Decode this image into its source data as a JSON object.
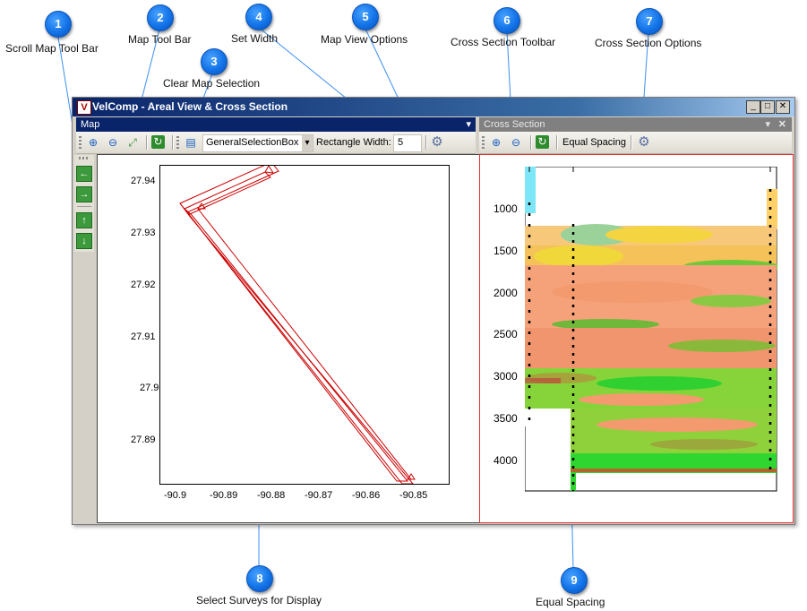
{
  "callouts": [
    {
      "num": "1",
      "label": "Scroll Map Tool Bar"
    },
    {
      "num": "2",
      "label": "Map Tool Bar"
    },
    {
      "num": "3",
      "label": "Clear Map Selection"
    },
    {
      "num": "4",
      "label": "Set Width"
    },
    {
      "num": "5",
      "label": "Map View Options"
    },
    {
      "num": "6",
      "label": "Cross Section Toolbar"
    },
    {
      "num": "7",
      "label": "Cross Section Options"
    },
    {
      "num": "8",
      "label": "Select Surveys for Display"
    },
    {
      "num": "9",
      "label": "Equal Spacing"
    }
  ],
  "window": {
    "title": "VelComp - Areal View & Cross Section",
    "app_icon_letter": "V",
    "min_glyph": "_",
    "max_glyph": "□",
    "close_glyph": "✕"
  },
  "map": {
    "header": "Map",
    "header_menu_glyph": "▾",
    "selection_dropdown_value": "GeneralSelectionBox",
    "dropdown_arrow": "▾",
    "rect_width_label": "Rectangle Width:",
    "rect_width_value": "5",
    "y_ticks": [
      "27.94",
      "27.93",
      "27.92",
      "27.91",
      "27.9",
      "27.89"
    ],
    "x_ticks": [
      "-90.9",
      "-90.89",
      "-90.88",
      "-90.87",
      "-90.86",
      "-90.85"
    ]
  },
  "cross_section": {
    "header": "Cross Section",
    "header_menu_glyph": "▾",
    "close_glyph": "✕",
    "equal_spacing_label": "Equal Spacing",
    "y_ticks": [
      "1000",
      "1500",
      "2000",
      "2500",
      "3000",
      "3500",
      "4000"
    ]
  },
  "colors": {
    "badge_blue": "#1273e8",
    "titlebar_dark": "#0a246a",
    "pane_active": "#0a246a",
    "pane_inactive": "#808080",
    "map_line": "#cc0000",
    "xs_border": "#e03030"
  }
}
